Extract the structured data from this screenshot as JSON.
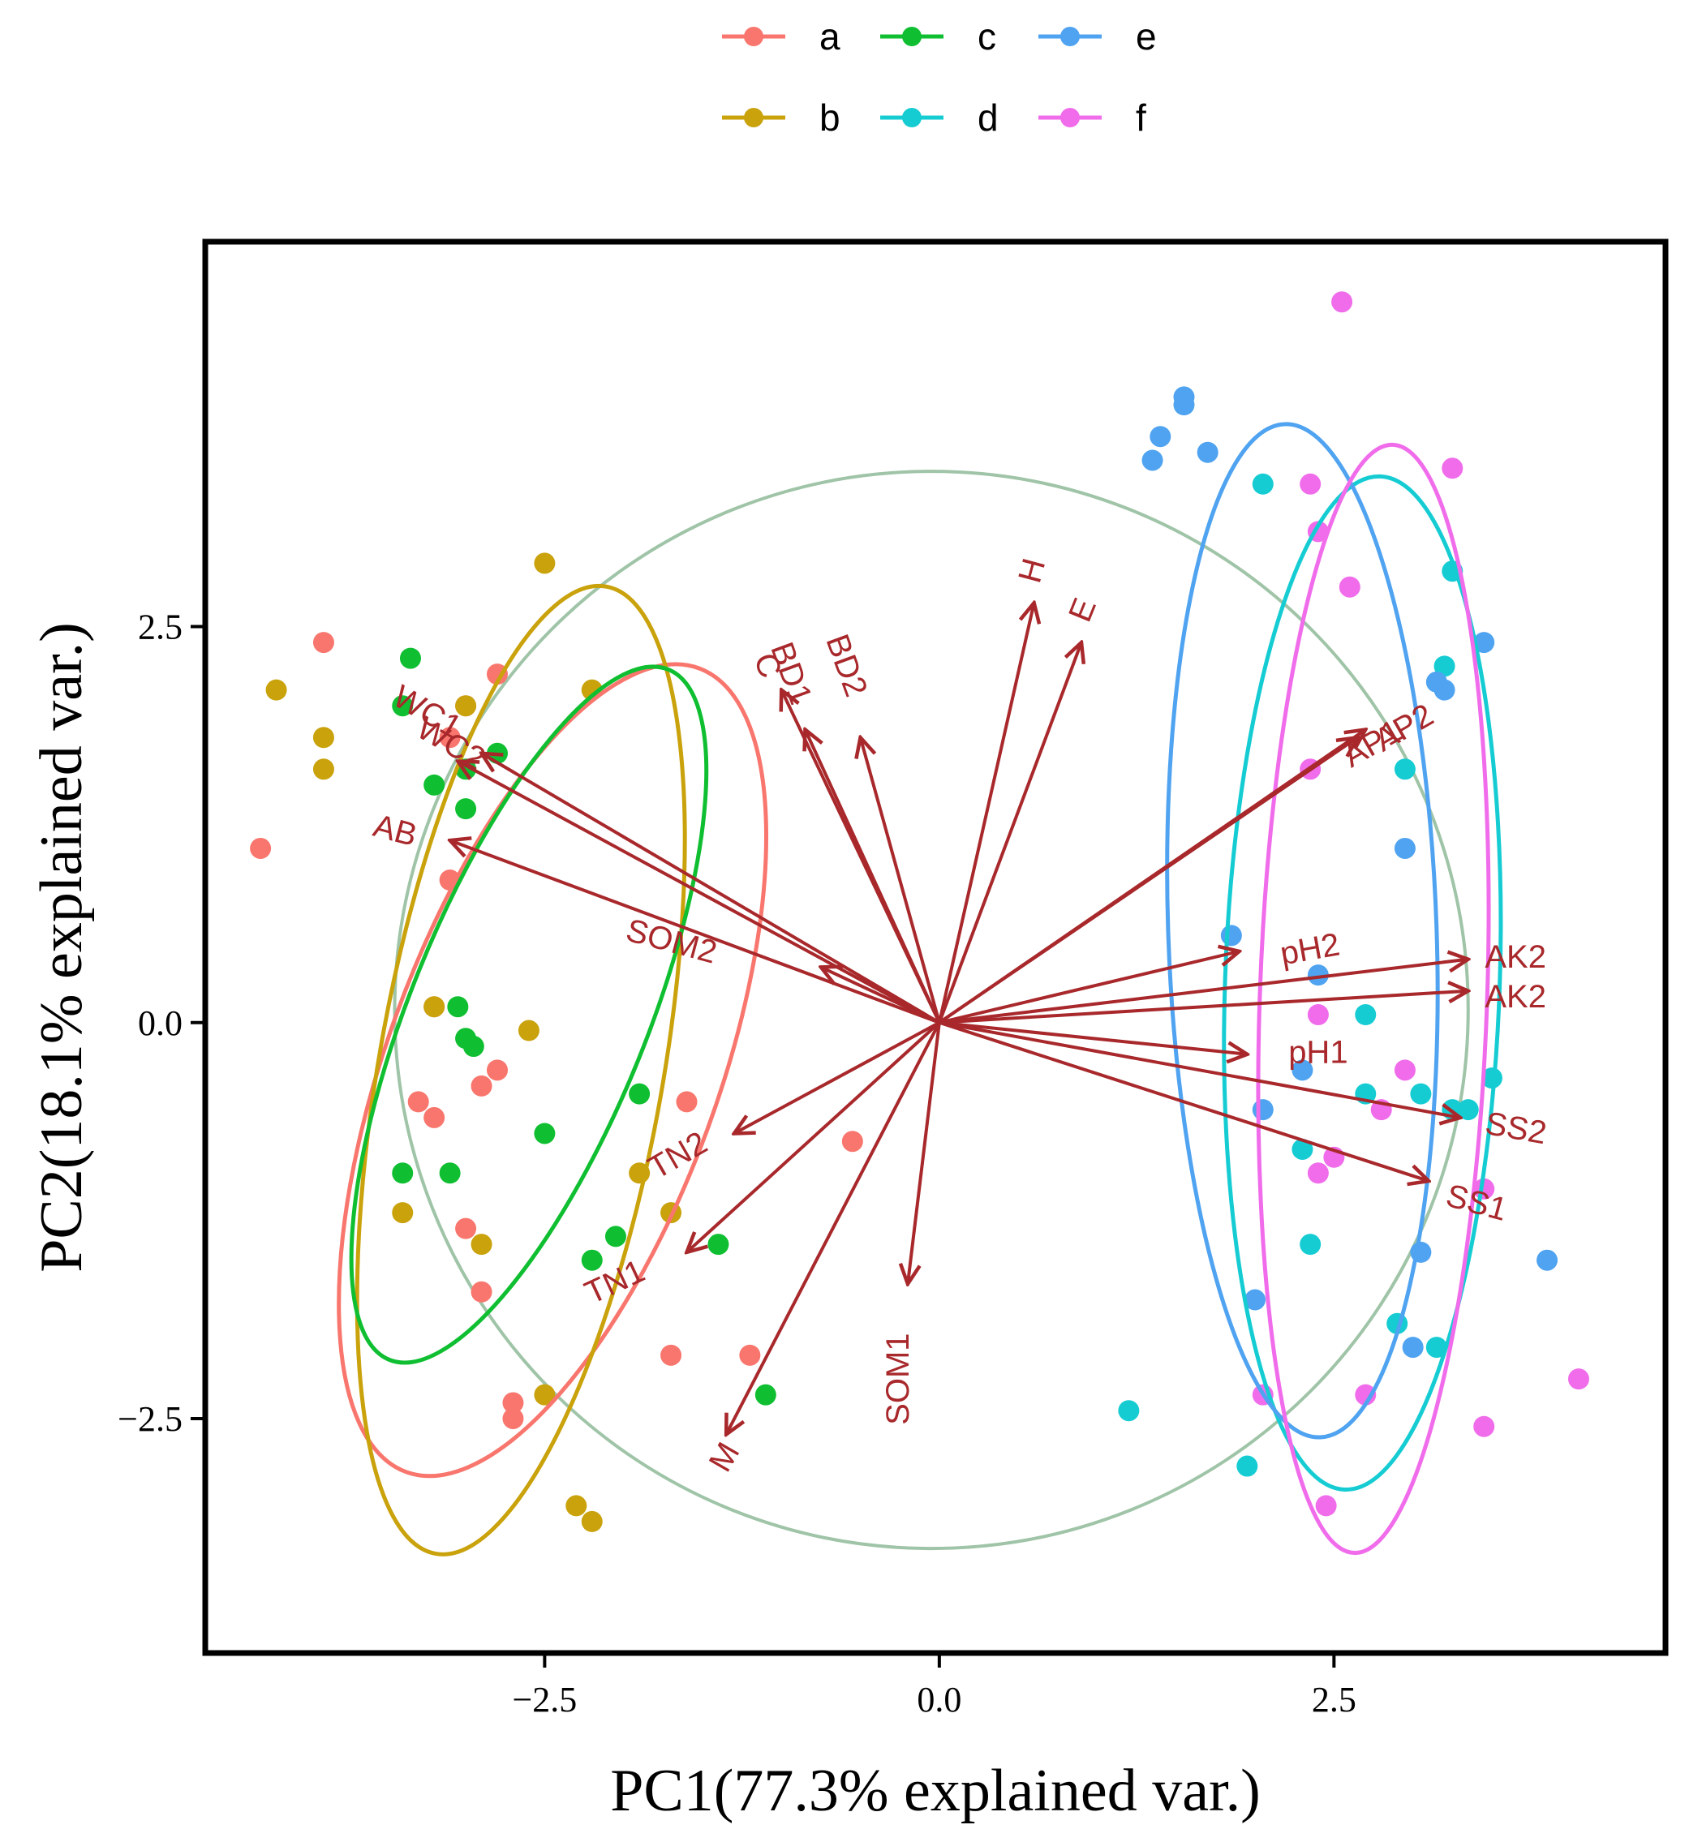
{
  "chart_data": {
    "type": "scatter",
    "subtype": "pca-biplot",
    "xlabel": "PC1(77.3%  explained var.)",
    "ylabel": "PC2(18.1%  explained var.)",
    "xlim": [
      -4.65,
      4.6
    ],
    "ylim": [
      -3.98,
      4.93
    ],
    "xticks": [
      -2.5,
      0.0,
      2.5
    ],
    "yticks": [
      -2.5,
      0.0,
      2.5
    ],
    "xtick_labels": [
      "−2.5",
      "0.0",
      "2.5"
    ],
    "ytick_labels": [
      "−2.5",
      "0.0",
      "2.5"
    ],
    "legend_position": "top",
    "colors": {
      "a": "#F8766D",
      "b": "#C9A20C",
      "c": "#0FBF31",
      "d": "#16CCD3",
      "e": "#4FA3F0",
      "f": "#F06CEB",
      "arrow": "#A8282B",
      "circle": "#9FC4A7",
      "frame": "#000000"
    },
    "correlation_circle": {
      "cx": -0.05,
      "cy": 0.08,
      "r": 3.4
    },
    "series": [
      {
        "name": "a",
        "color": "#F8766D",
        "points": [
          [
            -4.3,
            1.1
          ],
          [
            -3.9,
            2.4
          ],
          [
            -3.0,
            2.0
          ],
          [
            -2.8,
            2.2
          ],
          [
            -3.1,
            1.8
          ],
          [
            -3.1,
            0.9
          ],
          [
            -3.2,
            0.1
          ],
          [
            -3.3,
            -0.5
          ],
          [
            -3.2,
            -0.6
          ],
          [
            -2.9,
            -0.4
          ],
          [
            -3.0,
            -1.3
          ],
          [
            -2.9,
            -1.7
          ],
          [
            -2.7,
            -2.4
          ],
          [
            -2.7,
            -2.5
          ],
          [
            -1.6,
            -0.5
          ],
          [
            -1.7,
            -2.1
          ],
          [
            -1.2,
            -2.1
          ],
          [
            -0.55,
            -0.75
          ],
          [
            -2.8,
            -0.3
          ]
        ],
        "ellipse": {
          "cx": -2.45,
          "cy": -0.3,
          "rx": 1.05,
          "ry": 2.7,
          "angle": 20
        }
      },
      {
        "name": "b",
        "color": "#C9A20C",
        "points": [
          [
            -4.2,
            2.1
          ],
          [
            -3.9,
            1.6
          ],
          [
            -3.9,
            1.8
          ],
          [
            -3.0,
            2.0
          ],
          [
            -2.5,
            2.9
          ],
          [
            -2.2,
            2.1
          ],
          [
            -3.2,
            0.1
          ],
          [
            -2.6,
            -0.05
          ],
          [
            -3.4,
            -1.2
          ],
          [
            -2.9,
            -1.4
          ],
          [
            -2.5,
            -2.35
          ],
          [
            -2.3,
            -3.05
          ],
          [
            -2.2,
            -3.15
          ],
          [
            -1.9,
            -0.95
          ],
          [
            -1.7,
            -1.2
          ]
        ],
        "ellipse": {
          "cx": -2.65,
          "cy": -0.3,
          "rx": 0.9,
          "ry": 3.1,
          "angle": 10
        }
      },
      {
        "name": "c",
        "color": "#0FBF31",
        "points": [
          [
            -3.4,
            2.0
          ],
          [
            -3.35,
            2.3
          ],
          [
            -3.2,
            1.5
          ],
          [
            -3.0,
            1.6
          ],
          [
            -2.8,
            1.7
          ],
          [
            -3.0,
            1.35
          ],
          [
            -3.05,
            0.1
          ],
          [
            -3.0,
            -0.1
          ],
          [
            -2.95,
            -0.15
          ],
          [
            -3.4,
            -0.95
          ],
          [
            -3.1,
            -0.95
          ],
          [
            -2.5,
            -0.7
          ],
          [
            -1.9,
            -0.45
          ],
          [
            -2.05,
            -1.35
          ],
          [
            -2.2,
            -1.5
          ],
          [
            -1.4,
            -1.4
          ],
          [
            -1.1,
            -2.35
          ]
        ],
        "ellipse": {
          "cx": -2.6,
          "cy": 0.05,
          "rx": 0.75,
          "ry": 2.35,
          "angle": 22
        }
      },
      {
        "name": "d",
        "color": "#16CCD3",
        "points": [
          [
            2.05,
            3.4
          ],
          [
            3.25,
            2.85
          ],
          [
            3.2,
            2.25
          ],
          [
            2.95,
            1.6
          ],
          [
            2.7,
            0.05
          ],
          [
            3.5,
            -0.35
          ],
          [
            2.3,
            -0.8
          ],
          [
            2.35,
            -1.4
          ],
          [
            2.7,
            -0.45
          ],
          [
            3.05,
            -0.45
          ],
          [
            3.25,
            -0.55
          ],
          [
            2.9,
            -1.9
          ],
          [
            3.15,
            -2.05
          ],
          [
            1.2,
            -2.45
          ],
          [
            1.95,
            -2.8
          ],
          [
            3.35,
            -0.55
          ]
        ],
        "ellipse": {
          "cx": 2.68,
          "cy": 0.25,
          "rx": 0.87,
          "ry": 3.2,
          "angle": 2
        }
      },
      {
        "name": "e",
        "color": "#4FA3F0",
        "points": [
          [
            1.55,
            3.95
          ],
          [
            1.55,
            3.9
          ],
          [
            1.4,
            3.7
          ],
          [
            1.35,
            3.55
          ],
          [
            1.7,
            3.6
          ],
          [
            3.2,
            2.1
          ],
          [
            3.45,
            2.4
          ],
          [
            2.95,
            1.1
          ],
          [
            1.85,
            0.55
          ],
          [
            2.4,
            0.3
          ],
          [
            2.05,
            -0.55
          ],
          [
            2.3,
            -0.3
          ],
          [
            3.05,
            -1.45
          ],
          [
            3.85,
            -1.5
          ],
          [
            2.0,
            -1.75
          ],
          [
            3.0,
            -2.05
          ],
          [
            3.15,
            2.15
          ]
        ],
        "ellipse": {
          "cx": 2.3,
          "cy": 0.58,
          "rx": 0.85,
          "ry": 3.2,
          "angle": -2
        }
      },
      {
        "name": "f",
        "color": "#F06CEB",
        "points": [
          [
            2.55,
            4.55
          ],
          [
            2.35,
            3.4
          ],
          [
            2.4,
            3.1
          ],
          [
            2.6,
            2.75
          ],
          [
            3.25,
            3.5
          ],
          [
            2.35,
            1.6
          ],
          [
            2.4,
            0.05
          ],
          [
            2.95,
            -0.3
          ],
          [
            2.8,
            -0.55
          ],
          [
            2.5,
            -0.85
          ],
          [
            2.4,
            -0.95
          ],
          [
            3.45,
            -1.05
          ],
          [
            4.05,
            -2.25
          ],
          [
            2.05,
            -2.35
          ],
          [
            2.45,
            -3.05
          ],
          [
            3.45,
            -2.55
          ],
          [
            2.7,
            -2.35
          ]
        ],
        "ellipse": {
          "cx": 2.75,
          "cy": 0.15,
          "rx": 0.72,
          "ry": 3.5,
          "angle": 2
        }
      }
    ],
    "loadings": [
      {
        "label": "H",
        "x": 0.6,
        "y": 2.65,
        "lx": 0.6,
        "ly": 2.85,
        "rot": -75
      },
      {
        "label": "E",
        "x": 0.9,
        "y": 2.4,
        "lx": 0.92,
        "ly": 2.6,
        "rot": -68
      },
      {
        "label": "BD2",
        "x": -0.5,
        "y": 1.8,
        "lx": -0.6,
        "ly": 2.25,
        "rot": 70
      },
      {
        "label": "BD1",
        "x": -0.85,
        "y": 1.85,
        "lx": -0.95,
        "ly": 2.2,
        "rot": 70
      },
      {
        "label": "C",
        "x": -1.0,
        "y": 2.1,
        "lx": -1.1,
        "ly": 2.25,
        "rot": 70
      },
      {
        "label": "WC2",
        "x": -2.9,
        "y": 1.7,
        "lx": -3.1,
        "ly": 1.75,
        "rot": 30
      },
      {
        "label": "WC1",
        "x": -3.05,
        "y": 1.65,
        "lx": -3.25,
        "ly": 1.95,
        "rot": 30
      },
      {
        "label": "AB",
        "x": -3.1,
        "y": 1.15,
        "lx": -3.45,
        "ly": 1.2,
        "rot": 15
      },
      {
        "label": "SOM2",
        "x": -0.75,
        "y": 0.35,
        "lx": -1.7,
        "ly": 0.5,
        "rot": 15
      },
      {
        "label": "TN2",
        "x": -1.3,
        "y": -0.7,
        "lx": -1.65,
        "ly": -0.85,
        "rot": -30
      },
      {
        "label": "TN1",
        "x": -1.6,
        "y": -1.45,
        "lx": -2.05,
        "ly": -1.65,
        "rot": -25
      },
      {
        "label": "M",
        "x": -1.35,
        "y": -2.6,
        "lx": -1.35,
        "ly": -2.75,
        "rot": -60
      },
      {
        "label": "SOM1",
        "x": -0.2,
        "y": -1.65,
        "lx": -0.25,
        "ly": -2.25,
        "rot": -90
      },
      {
        "label": "AP2",
        "x": 2.65,
        "y": 1.8,
        "lx": 2.95,
        "ly": 1.85,
        "rot": -30
      },
      {
        "label": "AP1",
        "x": 2.7,
        "y": 1.85,
        "lx": 2.75,
        "ly": 1.75,
        "rot": -30
      },
      {
        "label": "pH2",
        "x": 1.9,
        "y": 0.45,
        "lx": 2.35,
        "ly": 0.45,
        "rot": -10
      },
      {
        "label": "pH1",
        "x": 1.95,
        "y": -0.2,
        "lx": 2.4,
        "ly": -0.2,
        "rot": 0
      },
      {
        "label": "AK2",
        "x": 3.35,
        "y": 0.4,
        "lx": 3.65,
        "ly": 0.4,
        "rot": 0
      },
      {
        "label": "AK2",
        "x": 3.35,
        "y": 0.2,
        "lx": 3.65,
        "ly": 0.15,
        "rot": 0
      },
      {
        "label": "SS2",
        "x": 3.3,
        "y": -0.6,
        "lx": 3.65,
        "ly": -0.68,
        "rot": 10
      },
      {
        "label": "SS1",
        "x": 3.1,
        "y": -1.0,
        "lx": 3.4,
        "ly": -1.15,
        "rot": 15
      }
    ]
  }
}
